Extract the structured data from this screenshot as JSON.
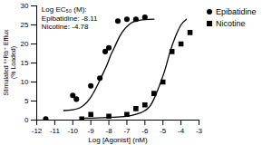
{
  "chart_data": {
    "type": "scatter",
    "xlabel": "Log [Agonist] (nM)",
    "ylabel": [
      "Stimulated ⁸⁶Rb⁺ Efflux",
      "(% Loaded)"
    ],
    "annotations": [
      "Log EC₅₀ (M):",
      "Epibatidine: -8.11",
      "Nicotine: -4.78"
    ],
    "xlim": [
      -12,
      -3
    ],
    "xticks": [
      -12,
      -11,
      -10,
      -9,
      -8,
      -7,
      -6,
      -5,
      -4,
      -3
    ],
    "ylim": [
      0,
      30
    ],
    "yticks": [
      0,
      5,
      10,
      15,
      20,
      25,
      30
    ],
    "legend": "right",
    "series": [
      {
        "name": "Epibatidine",
        "color": "#000000",
        "marker": "circle",
        "x": [
          -11.5,
          -10,
          -9.8,
          -9,
          -8.5,
          -8.2,
          -8,
          -7.5,
          -7,
          -6.5,
          -6
        ],
        "values": [
          0.3,
          6.5,
          5.5,
          9,
          11,
          18,
          19,
          26,
          26.5,
          26.5,
          27
        ],
        "fit_x": [
          -10.5,
          -10,
          -9.5,
          -9,
          -8.7,
          -8.4,
          -8.1,
          -7.9,
          -7.7,
          -7.4,
          -7.2,
          -6.9,
          -6.7,
          -6.3,
          -6,
          -5.5
        ],
        "fit_values": [
          2.5,
          2.7,
          3.5,
          6,
          8.5,
          11.5,
          14.5,
          17,
          19,
          22,
          23.5,
          25,
          25.7,
          26.2,
          26.4,
          26.5
        ]
      },
      {
        "name": "Nicotine",
        "color": "#000000",
        "marker": "square",
        "x": [
          -9.5,
          -9,
          -8,
          -7,
          -6.5,
          -6,
          -5.5,
          -5,
          -4.5,
          -4,
          -3.5
        ],
        "values": [
          0.3,
          1.5,
          1,
          1.5,
          3,
          4,
          7,
          10,
          18,
          20,
          23
        ],
        "fit_x": [
          -9.5,
          -8,
          -7,
          -6.5,
          -6,
          -5.7,
          -5.5,
          -5.2,
          -4.9,
          -4.6,
          -4.3,
          -4,
          -3.7
        ],
        "fit_values": [
          0.5,
          0.7,
          1,
          1.5,
          2.5,
          3.8,
          5.5,
          9,
          13,
          18,
          22,
          25,
          26.5
        ]
      }
    ]
  }
}
